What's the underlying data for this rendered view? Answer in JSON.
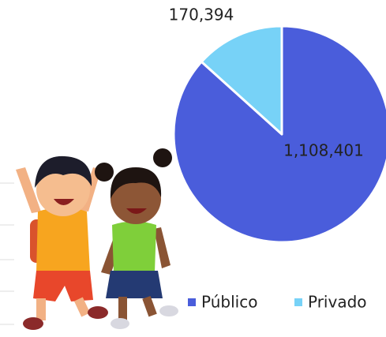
{
  "chart_data": {
    "type": "pie",
    "categories": [
      "Público",
      "Privado"
    ],
    "values": [
      1108401,
      170394
    ],
    "value_labels": [
      "1,108,401",
      "170,394"
    ],
    "colors": [
      "#4a5ddb",
      "#77d2f7"
    ],
    "legend": "bottom"
  }
}
